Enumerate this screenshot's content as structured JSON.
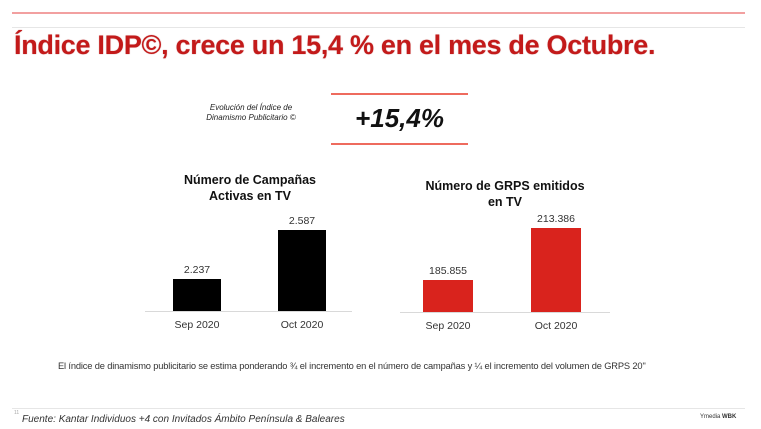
{
  "header": {
    "title": "Índice IDP©, crece un 15,4 % en el mes de Octubre."
  },
  "kpi": {
    "label": "Evolución del Índice de Dinamismo Publicitario ©",
    "value": "+15,4%"
  },
  "colors": {
    "title": "#c31a1a",
    "accent_line": "#ee6b5e",
    "campaigns_bar": "#000000",
    "grps_bar": "#d9231d"
  },
  "chart_data": [
    {
      "type": "bar",
      "title": "Número de Campañas Activas en TV",
      "title_lines": [
        "Número de Campañas",
        "Activas en TV"
      ],
      "categories": [
        "Sep 2020",
        "Oct 2020"
      ],
      "values": [
        2237,
        2587
      ],
      "value_labels": [
        "2.237",
        "2.587"
      ],
      "xlabel": "",
      "ylabel": "",
      "grid": false,
      "color": "#000000"
    },
    {
      "type": "bar",
      "title": "Número de GRPS emitidos en TV",
      "title_lines": [
        "Número de GRPS emitidos",
        "en TV"
      ],
      "categories": [
        "Sep 2020",
        "Oct 2020"
      ],
      "values": [
        185855,
        213386
      ],
      "value_labels": [
        "185.855",
        "213.386"
      ],
      "xlabel": "",
      "ylabel": "",
      "grid": false,
      "color": "#d9231d"
    }
  ],
  "note": "El índice de dinamismo publicitario se estima ponderando ¾ el incremento en el número de campañas y ¼ el incremento del volumen  de GRPS 20\"",
  "footer": {
    "page_number": "11",
    "source": "Fuente: Kantar Individuos +4 con Invitados Ámbito Península & Baleares",
    "logo_left": "Ymedia",
    "logo_right": "WBK"
  }
}
